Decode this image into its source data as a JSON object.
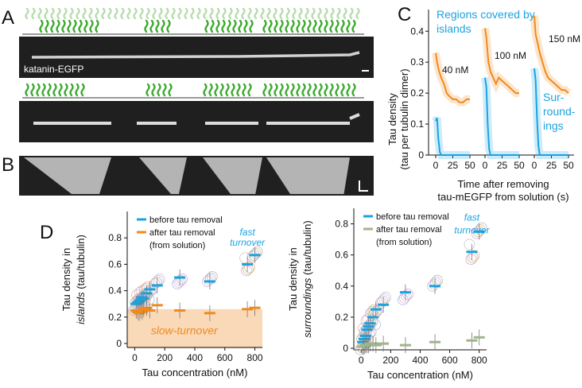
{
  "panels": {
    "a": "A",
    "b": "B",
    "c": "C",
    "d": "D"
  },
  "micrograph": {
    "label": "katanin-EGFP"
  },
  "colors": {
    "before": "#1ba3e0",
    "after": "#f08a1c",
    "after_surr": "#9fb58a",
    "tau_green": "#3cab2e",
    "slow_fill": "#f9d9b8"
  },
  "chart_data": [
    {
      "type": "line",
      "panel": "C",
      "ylabel_line1": "Tau density",
      "ylabel_line2": "(tau per tubulin dimer)",
      "xlabel_line1": "Time after removing",
      "xlabel_line2": "tau-mEGFP from solution (s)",
      "ylim": [
        0,
        0.45
      ],
      "yticks": [
        "0",
        "0.1",
        "0.2",
        "0.3",
        "0.4"
      ],
      "xticks": [
        "0",
        "25",
        "50"
      ],
      "annotations": {
        "islands_line1": "Regions covered by",
        "islands_line2": "islands",
        "surr_line1": "Sur-",
        "surr_line2": "roundings",
        "surr_line3": "ings",
        "surr_line2b": "round-"
      },
      "series": [
        {
          "name": "40 nM",
          "region": "islands",
          "color": "#f08a1c",
          "x": [
            0,
            2,
            5,
            8,
            12,
            16,
            20,
            25,
            30,
            35,
            40,
            45,
            50
          ],
          "values": [
            0.33,
            0.3,
            0.27,
            0.25,
            0.23,
            0.2,
            0.19,
            0.18,
            0.18,
            0.17,
            0.17,
            0.18,
            0.18
          ]
        },
        {
          "name": "40 nM",
          "region": "surroundings",
          "color": "#1ba3e0",
          "x": [
            0,
            2,
            4,
            6,
            8,
            12,
            16,
            20,
            30,
            40,
            50
          ],
          "values": [
            0.11,
            0.12,
            0.05,
            0.01,
            0.0,
            0.0,
            0.0,
            0.0,
            0.0,
            0.0,
            0.0
          ]
        },
        {
          "name": "100 nM",
          "region": "islands",
          "color": "#f08a1c",
          "x": [
            0,
            2,
            5,
            8,
            12,
            16,
            20,
            25,
            30,
            35,
            40,
            45,
            50
          ],
          "values": [
            0.41,
            0.38,
            0.3,
            0.27,
            0.25,
            0.23,
            0.25,
            0.24,
            0.23,
            0.22,
            0.21,
            0.2,
            0.2
          ]
        },
        {
          "name": "100 nM",
          "region": "surroundings",
          "color": "#1ba3e0",
          "x": [
            0,
            2,
            4,
            6,
            8,
            12,
            16,
            20,
            30,
            40,
            50
          ],
          "values": [
            0.25,
            0.22,
            0.1,
            0.02,
            0.0,
            0.0,
            0.0,
            0.0,
            0.0,
            0.0,
            0.0
          ]
        },
        {
          "name": "150 nM",
          "region": "islands",
          "color": "#f08a1c",
          "x": [
            0,
            2,
            5,
            8,
            12,
            16,
            20,
            25,
            30,
            35,
            40,
            45,
            50
          ],
          "values": [
            0.45,
            0.39,
            0.36,
            0.33,
            0.3,
            0.27,
            0.25,
            0.24,
            0.23,
            0.22,
            0.21,
            0.21,
            0.2
          ]
        },
        {
          "name": "150 nM",
          "region": "surroundings",
          "color": "#1ba3e0",
          "x": [
            0,
            2,
            4,
            6,
            8,
            12,
            16,
            20,
            30,
            40,
            50
          ],
          "values": [
            0.28,
            0.24,
            0.12,
            0.03,
            0.0,
            0.0,
            0.0,
            0.0,
            0.0,
            0.0,
            0.0
          ]
        }
      ]
    },
    {
      "type": "scatter",
      "panel": "D-left",
      "ylabel_line1": "Tau density in",
      "ylabel_italic": "islands",
      "ylabel_line2": "(tau/tubulin)",
      "xlabel": "Tau concentration (nM)",
      "xlim": [
        -50,
        850
      ],
      "ylim": [
        -0.03,
        1.0
      ],
      "xticks": [
        "0",
        "200",
        "400",
        "600",
        "800"
      ],
      "yticks": [
        "0",
        "0.2",
        "0.4",
        "0.6",
        "0.8"
      ],
      "legend": [
        "before tau removal",
        "after tau removal",
        "(from solution)"
      ],
      "annotation_fast_1": "fast",
      "annotation_fast_2": "turnover",
      "annotation_slow": "slow-turnover",
      "slow_band": [
        0,
        0.26
      ],
      "series": [
        {
          "name": "before tau removal",
          "x": [
            10,
            20,
            30,
            40,
            50,
            60,
            80,
            100,
            150,
            300,
            500,
            750,
            800
          ],
          "values": [
            0.3,
            0.31,
            0.32,
            0.33,
            0.35,
            0.34,
            0.38,
            0.41,
            0.44,
            0.5,
            0.47,
            0.6,
            0.67
          ]
        },
        {
          "name": "after tau removal",
          "x": [
            10,
            20,
            30,
            40,
            50,
            60,
            80,
            100,
            150,
            300,
            500,
            750,
            800
          ],
          "values": [
            0.25,
            0.24,
            0.23,
            0.25,
            0.24,
            0.26,
            0.27,
            0.25,
            0.29,
            0.25,
            0.23,
            0.26,
            0.27
          ]
        }
      ]
    },
    {
      "type": "scatter",
      "panel": "D-right",
      "ylabel_line1": "Tau density in",
      "ylabel_italic": "surroundings",
      "ylabel_line2": "(tau/tubulin)",
      "xlabel": "Tau concentration (nM)",
      "xlim": [
        -50,
        850
      ],
      "ylim": [
        -0.01,
        0.9
      ],
      "xticks": [
        "0",
        "200",
        "400",
        "600",
        "800"
      ],
      "yticks": [
        "0",
        "0.2",
        "0.4",
        "0.6",
        "0.8"
      ],
      "legend": [
        "before tau removal",
        "after tau removal",
        "(from solution)"
      ],
      "annotation_fast_1": "fast",
      "annotation_fast_2": "turnover",
      "series": [
        {
          "name": "before tau removal",
          "x": [
            10,
            20,
            30,
            40,
            50,
            60,
            80,
            100,
            150,
            300,
            500,
            750,
            800
          ],
          "values": [
            0.04,
            0.06,
            0.08,
            0.12,
            0.14,
            0.16,
            0.2,
            0.25,
            0.28,
            0.36,
            0.4,
            0.62,
            0.75
          ]
        },
        {
          "name": "after tau removal",
          "x": [
            10,
            20,
            30,
            40,
            50,
            60,
            80,
            100,
            150,
            300,
            500,
            750,
            800
          ],
          "values": [
            0.01,
            0.01,
            0.02,
            0.02,
            0.02,
            0.03,
            0.03,
            0.02,
            0.03,
            0.02,
            0.04,
            0.05,
            0.07
          ]
        }
      ]
    }
  ]
}
